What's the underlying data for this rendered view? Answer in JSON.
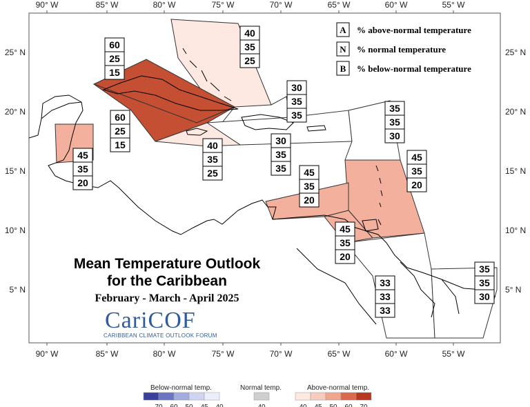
{
  "map": {
    "lon_labels": [
      "90° W",
      "85° W",
      "80° W",
      "75° W",
      "70° W",
      "65° W",
      "60° W",
      "55° W"
    ],
    "lat_labels": [
      "25° N",
      "20° N",
      "15° N",
      "10° N",
      "5° N"
    ]
  },
  "title": {
    "line1": "Mean Temperature Outlook",
    "line2": "for the Caribbean",
    "period": "February - March - April 2025"
  },
  "logo": {
    "text": "CariCOF",
    "subtitle": "CARIBBEAN CLIMATE OUTLOOK FORUM"
  },
  "legend": {
    "items": [
      {
        "key": "A",
        "label": "% above-normal temperature"
      },
      {
        "key": "N",
        "label": "% normal temperature"
      },
      {
        "key": "B",
        "label": "% below-normal temperature"
      }
    ]
  },
  "regions": [
    {
      "id": "bahamas",
      "color": "#fde8e2",
      "a": "40",
      "n": "35",
      "b": "25"
    },
    {
      "id": "cuba-north",
      "color": "#c44f33",
      "a": "60",
      "n": "25",
      "b": "15"
    },
    {
      "id": "cuba-south",
      "color": "#c44f33",
      "a": "60",
      "n": "25",
      "b": "15"
    },
    {
      "id": "turks-caicos",
      "color": "#ffffff",
      "a": "30",
      "n": "35",
      "b": "35"
    },
    {
      "id": "hispaniola",
      "color": "#ffffff",
      "a": "30",
      "n": "35",
      "b": "35"
    },
    {
      "id": "jamaica",
      "color": "#fde8e2",
      "a": "40",
      "n": "35",
      "b": "25"
    },
    {
      "id": "belize",
      "color": "#f3b09c",
      "a": "45",
      "n": "35",
      "b": "20"
    },
    {
      "id": "northern-leewards",
      "color": "#ffffff",
      "a": "35",
      "n": "35",
      "b": "30"
    },
    {
      "id": "windwards",
      "color": "#f3b09c",
      "a": "45",
      "n": "35",
      "b": "20"
    },
    {
      "id": "abc-islands",
      "color": "#f3b09c",
      "a": "45",
      "n": "35",
      "b": "20"
    },
    {
      "id": "trinidad",
      "color": "#f3b09c",
      "a": "45",
      "n": "35",
      "b": "20"
    },
    {
      "id": "guyana",
      "color": "#ffffff",
      "a": "33",
      "n": "33",
      "b": "33"
    },
    {
      "id": "french-guiana",
      "color": "#ffffff",
      "a": "35",
      "n": "35",
      "b": "30"
    }
  ],
  "colorbar": {
    "below": {
      "title": "Below-normal temp.",
      "ticks": [
        "70",
        "60",
        "50",
        "45",
        "40"
      ],
      "colors": [
        "#3a3f9a",
        "#6a76c2",
        "#a2acdf",
        "#cfd5f0",
        "#eceffa"
      ]
    },
    "normal": {
      "title": "Normal temp.",
      "ticks": [
        "40"
      ],
      "colors": [
        "#cfcfcf"
      ]
    },
    "above": {
      "title": "Above-normal temp.",
      "ticks": [
        "40",
        "45",
        "50",
        "60",
        "70"
      ],
      "colors": [
        "#fde8e2",
        "#f7cbbd",
        "#f0a58d",
        "#d96a4d",
        "#b8381f"
      ]
    }
  }
}
